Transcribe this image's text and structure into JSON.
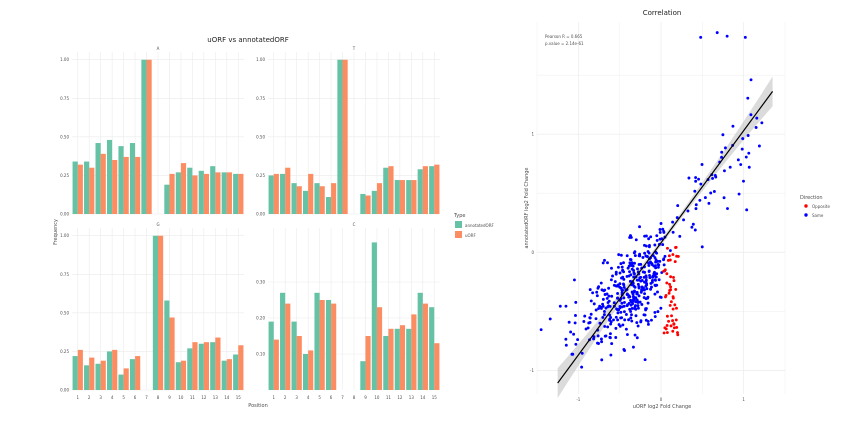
{
  "left_panel": {
    "title": "uORF vs annotatedORF",
    "xlabel": "Position",
    "ylabel": "Frequency",
    "legend_title": "Type",
    "legend_items": [
      "annotatedORF",
      "uORF"
    ]
  },
  "right_panel": {
    "title": "Correlation",
    "xlabel": "uORF log2 Fold Change",
    "ylabel": "annotatedORF log2 Fold Change",
    "annotation_r": "Pearson R = 0.665",
    "annotation_p": "p.value = 2.14e-61",
    "legend_title": "Direction",
    "legend_items": [
      "Opposite",
      "Same"
    ]
  },
  "colors": {
    "annotatedORF": "#66c2a5",
    "uORF": "#fc8d62",
    "same": "#0000ff",
    "opposite": "#ff0000",
    "panel_bg": "#ffffff",
    "grid": "#ebebeb",
    "fit_line": "#000000",
    "ribbon": "#bdbdbd"
  },
  "chart_data": [
    {
      "type": "bar",
      "title": "uORF vs annotatedORF",
      "xlabel": "Position",
      "ylabel": "Frequency",
      "facets": [
        "A",
        "T",
        "G",
        "C"
      ],
      "categories": [
        1,
        2,
        3,
        4,
        5,
        6,
        7,
        8,
        9,
        10,
        11,
        12,
        13,
        14,
        15
      ],
      "ylim": [
        0,
        1.05
      ],
      "series": [
        {
          "name": "annotatedORF",
          "values_by_facet": {
            "A": [
              0.34,
              0.34,
              0.46,
              0.48,
              0.44,
              0.46,
              1.0,
              null,
              0.19,
              0.27,
              0.3,
              0.28,
              0.31,
              0.27,
              0.26
            ],
            "T": [
              0.25,
              0.26,
              0.2,
              0.15,
              0.2,
              0.11,
              1.0,
              null,
              0.13,
              0.15,
              0.3,
              0.22,
              0.22,
              0.29,
              0.31
            ],
            "G": [
              0.22,
              0.16,
              0.17,
              0.25,
              0.1,
              0.2,
              0.0,
              1.0,
              0.58,
              0.18,
              0.27,
              0.3,
              0.31,
              0.19,
              0.23
            ],
            "C": [
              0.19,
              0.27,
              0.19,
              0.1,
              0.27,
              0.25,
              0.0,
              0.0,
              0.08,
              0.41,
              0.15,
              0.17,
              0.17,
              0.27,
              0.23
            ]
          }
        },
        {
          "name": "uORF",
          "values_by_facet": {
            "A": [
              0.32,
              0.3,
              0.39,
              0.35,
              0.37,
              0.37,
              1.0,
              null,
              0.26,
              0.33,
              0.25,
              0.26,
              0.27,
              0.27,
              0.26
            ],
            "T": [
              0.26,
              0.3,
              0.18,
              0.26,
              0.18,
              0.2,
              1.0,
              null,
              0.12,
              0.2,
              0.31,
              0.22,
              0.22,
              0.31,
              0.32
            ],
            "G": [
              0.26,
              0.21,
              0.19,
              0.26,
              0.14,
              0.22,
              0.0,
              1.0,
              0.47,
              0.19,
              0.31,
              0.31,
              0.34,
              0.2,
              0.29
            ],
            "C": [
              0.14,
              0.24,
              0.15,
              0.11,
              0.25,
              0.24,
              0.0,
              0.0,
              0.15,
              0.23,
              0.17,
              0.18,
              0.21,
              0.24,
              0.13
            ]
          }
        }
      ]
    },
    {
      "type": "scatter",
      "title": "Correlation",
      "xlabel": "uORF log2 Fold Change",
      "ylabel": "annotatedORF log2 Fold Change",
      "xlim": [
        -1.5,
        1.5
      ],
      "ylim": [
        -1.2,
        1.95
      ],
      "xticks": [
        -1,
        0,
        1
      ],
      "yticks": [
        -1,
        0,
        1
      ],
      "fit": {
        "slope": 0.95,
        "intercept": 0.08,
        "method": "lm with confidence band"
      },
      "series": [
        {
          "name": "Same",
          "description": "uORF and annotatedORF change in same direction",
          "n_points": 470
        },
        {
          "name": "Opposite",
          "description": "uORF and annotatedORF change in opposite directions",
          "n_points": 50
        }
      ]
    }
  ]
}
